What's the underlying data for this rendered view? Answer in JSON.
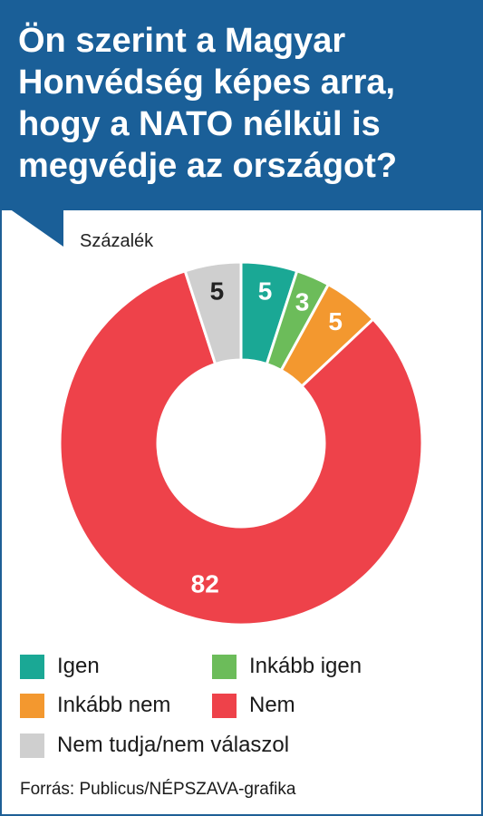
{
  "title": "Ön szerint a Magyar Honvédség képes arra, hogy a NATO nélkül is megvédje az országot?",
  "unit_label": "Százalék",
  "source": "Forrás: Publicus/NÉPSZAVA-grafika",
  "colors": {
    "header": "#1a5f98",
    "igen": "#1aa895",
    "inkabb_igen": "#6cbc5a",
    "inkabb_nem": "#f3982f",
    "nem": "#ee424a",
    "nem_tudja": "#cfcfcf"
  },
  "chart_data": {
    "type": "pie",
    "donut": true,
    "unit": "Százalék",
    "slices": [
      {
        "label": "Igen",
        "value": 5,
        "color": "#1aa895",
        "label_color": "#ffffff"
      },
      {
        "label": "Inkább igen",
        "value": 3,
        "color": "#6cbc5a",
        "label_color": "#ffffff"
      },
      {
        "label": "Inkább nem",
        "value": 5,
        "color": "#f3982f",
        "label_color": "#ffffff"
      },
      {
        "label": "Nem",
        "value": 82,
        "color": "#ee424a",
        "label_color": "#ffffff"
      },
      {
        "label": "Nem tudja/nem válaszol",
        "value": 5,
        "color": "#cfcfcf",
        "label_color": "#222222"
      }
    ],
    "legend_placement": "bottom"
  },
  "legend": [
    {
      "label": "Igen",
      "color": "#1aa895"
    },
    {
      "label": "Inkább igen",
      "color": "#6cbc5a"
    },
    {
      "label": "Inkább nem",
      "color": "#f3982f"
    },
    {
      "label": "Nem",
      "color": "#ee424a"
    },
    {
      "label": "Nem tudja/nem válaszol",
      "color": "#cfcfcf"
    }
  ]
}
